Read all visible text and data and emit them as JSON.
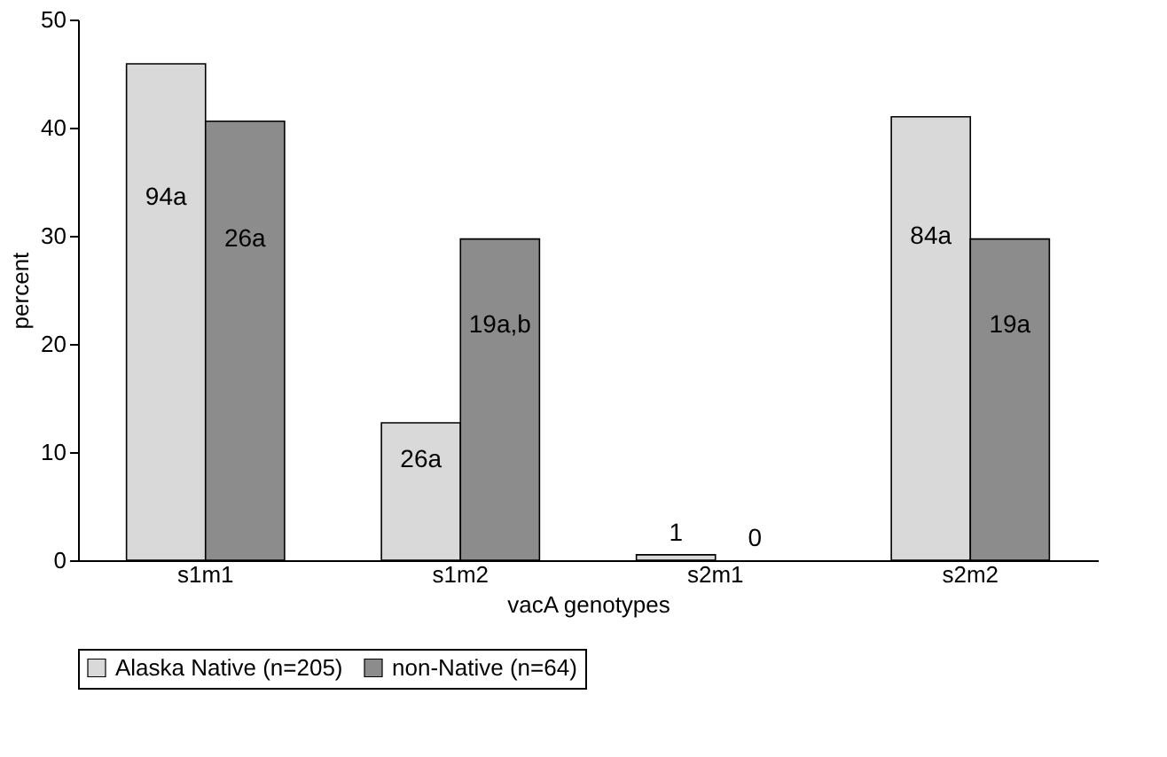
{
  "chart_data": {
    "type": "bar",
    "xlabel": "vacA genotypes",
    "ylabel": "percent",
    "categories": [
      "s1m1",
      "s1m2",
      "s2m1",
      "s2m2"
    ],
    "series": [
      {
        "name": "Alaska Native (n=205)",
        "color": "#d9d9d9",
        "values": [
          45.9,
          12.7,
          0.5,
          41.0
        ]
      },
      {
        "name": "non-Native (n=64)",
        "color": "#8c8c8c",
        "values": [
          40.6,
          29.7,
          0,
          29.7
        ]
      }
    ],
    "annotations": [
      "94a",
      "26a",
      "1",
      "84a",
      "26a",
      "19a,b",
      "0",
      "19a"
    ],
    "ylim": [
      0,
      50
    ],
    "yticks": [
      0,
      10,
      20,
      30,
      40,
      50
    ],
    "grid": false,
    "legend": "bottom"
  }
}
